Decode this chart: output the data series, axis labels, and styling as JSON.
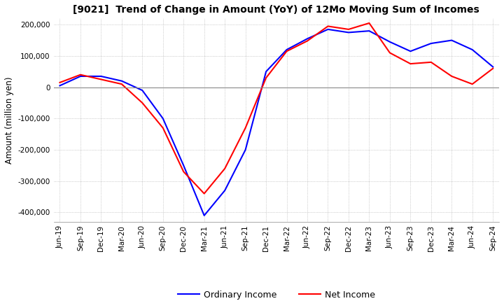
{
  "title": "[9021]  Trend of Change in Amount (YoY) of 12Mo Moving Sum of Incomes",
  "ylabel": "Amount (million yen)",
  "ylim": [
    -430000,
    220000
  ],
  "yticks": [
    -400000,
    -300000,
    -200000,
    -100000,
    0,
    100000,
    200000
  ],
  "background_color": "#ffffff",
  "grid_color": "#aaaaaa",
  "legend_labels": [
    "Ordinary Income",
    "Net Income"
  ],
  "line_colors": [
    "#0000ff",
    "#ff0000"
  ],
  "x_labels": [
    "Jun-19",
    "Sep-19",
    "Dec-19",
    "Mar-20",
    "Jun-20",
    "Sep-20",
    "Dec-20",
    "Mar-21",
    "Jun-21",
    "Sep-21",
    "Dec-21",
    "Mar-22",
    "Jun-22",
    "Sep-22",
    "Dec-22",
    "Mar-23",
    "Jun-23",
    "Sep-23",
    "Dec-23",
    "Mar-24",
    "Jun-24",
    "Sep-24"
  ],
  "ordinary_income": [
    5000,
    35000,
    35000,
    20000,
    -10000,
    -100000,
    -250000,
    -410000,
    -330000,
    -200000,
    50000,
    120000,
    155000,
    185000,
    175000,
    180000,
    145000,
    115000,
    140000,
    150000,
    120000,
    65000
  ],
  "net_income": [
    15000,
    40000,
    25000,
    10000,
    -50000,
    -130000,
    -270000,
    -340000,
    -260000,
    -130000,
    30000,
    115000,
    148000,
    195000,
    185000,
    205000,
    110000,
    75000,
    80000,
    35000,
    10000,
    60000
  ]
}
